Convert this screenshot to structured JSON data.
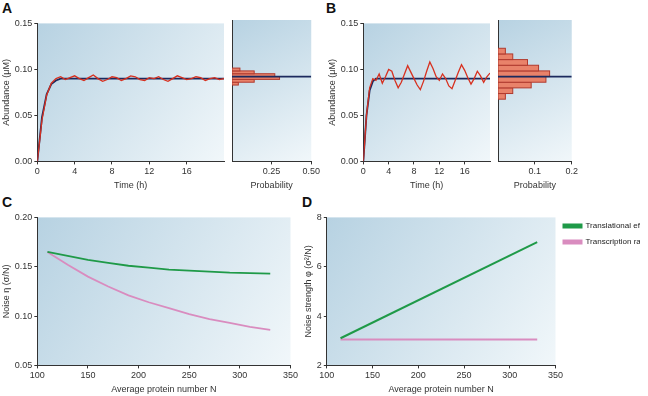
{
  "chart_data": [
    {
      "type": "line",
      "title": "A",
      "x": [
        0,
        0.5,
        1,
        1.5,
        2,
        2.5,
        3,
        3.5,
        4,
        4.5,
        5,
        5.5,
        6,
        6.5,
        7,
        7.5,
        8,
        8.5,
        9,
        9.5,
        10,
        10.5,
        11,
        11.5,
        12,
        12.5,
        13,
        13.5,
        14,
        14.5,
        15,
        15.5,
        16,
        16.5,
        17,
        17.5,
        18,
        18.5,
        19,
        19.5,
        20
      ],
      "xlim": [
        0,
        20
      ],
      "xticks": [
        0,
        4,
        8,
        12,
        16
      ],
      "xlabel": "Time (h)",
      "ylim": [
        0,
        0.15
      ],
      "yticks": [
        {
          "value": 0,
          "label": "0.00"
        },
        0.05,
        {
          "value": 0.1,
          "label": "0.10"
        },
        0.15
      ],
      "ylabel": "Abundance (μM)",
      "grid": false,
      "series": [
        {
          "color": "#d7301f",
          "values": [
            0,
            0.045,
            0.072,
            0.085,
            0.09,
            0.092,
            0.089,
            0.091,
            0.093,
            0.09,
            0.088,
            0.091,
            0.094,
            0.09,
            0.087,
            0.089,
            0.092,
            0.091,
            0.088,
            0.09,
            0.093,
            0.092,
            0.089,
            0.088,
            0.091,
            0.09,
            0.092,
            0.089,
            0.087,
            0.09,
            0.093,
            0.091,
            0.089,
            0.09,
            0.092,
            0.091,
            0.088,
            0.09,
            0.091,
            0.089,
            0.09
          ]
        },
        {
          "color": "#1c2a5e",
          "values": [
            0,
            0.048,
            0.073,
            0.084,
            0.088,
            0.09,
            0.09,
            0.09,
            0.09,
            0.09,
            0.09,
            0.09,
            0.09,
            0.09,
            0.09,
            0.09,
            0.09,
            0.09,
            0.09,
            0.09,
            0.09,
            0.09,
            0.09,
            0.09,
            0.09,
            0.09,
            0.09,
            0.09,
            0.09,
            0.09,
            0.09,
            0.09,
            0.09,
            0.09,
            0.09,
            0.09,
            0.09,
            0.09,
            0.09,
            0.09,
            0.09
          ]
        }
      ]
    },
    {
      "type": "histogram",
      "orientation": "horizontal",
      "bins": [
        0.081,
        0.084,
        0.087,
        0.09,
        0.093,
        0.096,
        0.099
      ],
      "values": [
        0.04,
        0.14,
        0.3,
        0.27,
        0.14,
        0.05
      ],
      "mean": 0.09,
      "color": "#e9826a",
      "xlim": [
        0,
        0.5
      ],
      "xticks": [
        0.25,
        {
          "value": 0.5,
          "label": "0.50"
        }
      ],
      "xlabel": "Probability",
      "ylim": [
        0,
        0.15
      ],
      "tick_labels": "x",
      "grid": false
    },
    {
      "type": "line",
      "title": "B",
      "x": [
        0,
        0.5,
        1,
        1.5,
        2,
        2.5,
        3,
        3.5,
        4,
        4.5,
        5,
        5.5,
        6,
        6.5,
        7,
        7.5,
        8,
        8.5,
        9,
        9.5,
        10,
        10.5,
        11,
        11.5,
        12,
        12.5,
        13,
        13.5,
        14,
        14.5,
        15,
        15.5,
        16,
        16.5,
        17,
        17.5,
        18,
        18.5,
        19,
        19.5,
        20
      ],
      "xlim": [
        0,
        20
      ],
      "xticks": [
        0,
        4,
        8,
        12,
        16
      ],
      "xlabel": "Time (h)",
      "ylim": [
        0,
        0.15
      ],
      "yticks": [
        {
          "value": 0,
          "label": "0.00"
        },
        0.05,
        {
          "value": 0.1,
          "label": "0.10"
        },
        0.15
      ],
      "ylabel": "Abundance (μM)",
      "grid": false,
      "series": [
        {
          "color": "#d7301f",
          "values": [
            0,
            0.05,
            0.08,
            0.09,
            0.088,
            0.095,
            0.085,
            0.092,
            0.1,
            0.098,
            0.088,
            0.08,
            0.086,
            0.095,
            0.104,
            0.097,
            0.09,
            0.083,
            0.078,
            0.087,
            0.098,
            0.108,
            0.101,
            0.092,
            0.088,
            0.095,
            0.09,
            0.082,
            0.079,
            0.088,
            0.097,
            0.105,
            0.099,
            0.091,
            0.084,
            0.09,
            0.098,
            0.093,
            0.086,
            0.092,
            0.096
          ]
        },
        {
          "color": "#1c2a5e",
          "values": [
            0,
            0.05,
            0.077,
            0.087,
            0.09,
            0.09,
            0.09,
            0.09,
            0.09,
            0.09,
            0.09,
            0.09,
            0.09,
            0.09,
            0.09,
            0.09,
            0.09,
            0.09,
            0.09,
            0.09,
            0.09,
            0.09,
            0.09,
            0.09,
            0.09,
            0.09,
            0.09,
            0.09,
            0.09,
            0.09,
            0.09,
            0.09,
            0.09,
            0.09,
            0.09,
            0.09,
            0.09,
            0.09,
            0.09,
            0.09,
            0.09
          ]
        }
      ]
    },
    {
      "type": "histogram",
      "orientation": "horizontal",
      "bins": [
        0.066,
        0.072,
        0.078,
        0.084,
        0.09,
        0.096,
        0.102,
        0.108,
        0.114,
        0.12
      ],
      "values": [
        0.02,
        0.04,
        0.09,
        0.13,
        0.14,
        0.11,
        0.08,
        0.04,
        0.02
      ],
      "mean": 0.09,
      "color": "#e9826a",
      "xlim": [
        0,
        0.2
      ],
      "xticks": [
        0.1,
        0.2
      ],
      "xlabel": "Probability",
      "ylim": [
        0,
        0.15
      ],
      "tick_labels": "x",
      "grid": false
    },
    {
      "type": "line",
      "title": "C",
      "x": [
        110,
        130,
        150,
        170,
        190,
        210,
        230,
        250,
        270,
        290,
        310,
        330
      ],
      "xlim": [
        100,
        350
      ],
      "xticks": [
        100,
        150,
        200,
        250,
        300,
        350
      ],
      "xlabel": "Average protein number N",
      "ylim": [
        0.05,
        0.2
      ],
      "yticks": [
        0.05,
        {
          "value": 0.1,
          "label": "0.10"
        },
        0.15,
        {
          "value": 0.2,
          "label": "0.20"
        }
      ],
      "ylabel": "Noise η (σ/N)",
      "grid": false,
      "series": [
        {
          "color": "#1f9a48",
          "values": [
            0.165,
            0.161,
            0.157,
            0.154,
            0.151,
            0.149,
            0.147,
            0.146,
            0.145,
            0.144,
            0.1435,
            0.143
          ]
        },
        {
          "color": "#d98cbf",
          "values": [
            0.165,
            0.152,
            0.14,
            0.13,
            0.121,
            0.114,
            0.108,
            0.102,
            0.097,
            0.093,
            0.089,
            0.086
          ]
        }
      ]
    },
    {
      "type": "line",
      "title": "D",
      "x": [
        115,
        330
      ],
      "xlim": [
        100,
        350
      ],
      "xticks": [
        100,
        150,
        200,
        250,
        300,
        350
      ],
      "xlabel": "Average protein number N",
      "ylim": [
        2,
        8
      ],
      "yticks": [
        2,
        4,
        6,
        8
      ],
      "ylabel": "Noise strength φ (σ²/N)",
      "grid": false,
      "legend": "right",
      "series": [
        {
          "name": "Translational efficiency varied",
          "color": "#1f9a48",
          "values": [
            3.1,
            7.0
          ]
        },
        {
          "name": "Transcription rate varied",
          "color": "#d98cbf",
          "values": [
            3.05,
            3.05
          ]
        }
      ]
    }
  ]
}
